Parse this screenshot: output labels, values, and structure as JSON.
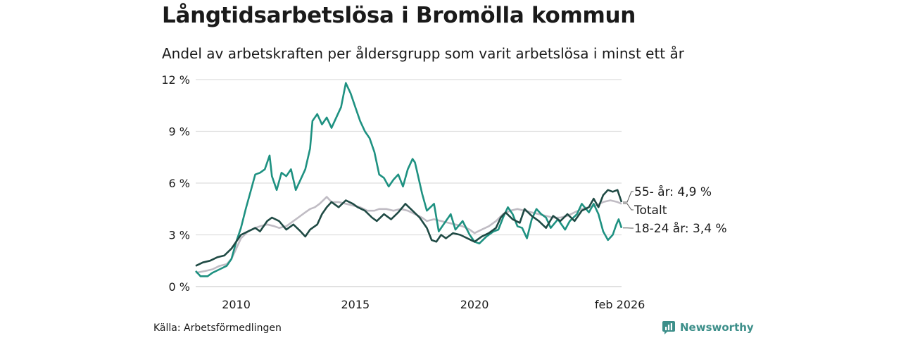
{
  "chart_data": {
    "type": "line",
    "title": "Långtidsarbetslösa i Bromölla kommun",
    "subtitle": "Andel av arbetskraften per åldersgrupp som varit arbetslösa i minst ett år",
    "ylim": [
      0,
      12
    ],
    "xlim": [
      2008.3,
      2026.17
    ],
    "yticks": [
      {
        "value": 0,
        "label": "0 %"
      },
      {
        "value": 3,
        "label": "3 %"
      },
      {
        "value": 6,
        "label": "6 %"
      },
      {
        "value": 9,
        "label": "9 %"
      },
      {
        "value": 12,
        "label": "12 %"
      }
    ],
    "xticks": [
      {
        "value": 2010,
        "label": "2010"
      },
      {
        "value": 2015,
        "label": "2015"
      },
      {
        "value": 2020,
        "label": "2020"
      },
      {
        "value": 2026.1,
        "label": "feb 2026"
      }
    ],
    "grid": true,
    "series": [
      {
        "name": "Totalt",
        "color": "#c0bcc4",
        "end_label": "Totalt",
        "points": [
          [
            2008.3,
            0.8
          ],
          [
            2008.7,
            0.9
          ],
          [
            2009.0,
            1.0
          ],
          [
            2009.3,
            1.2
          ],
          [
            2009.6,
            1.3
          ],
          [
            2009.8,
            1.6
          ],
          [
            2010.0,
            2.2
          ],
          [
            2010.2,
            2.8
          ],
          [
            2010.5,
            3.2
          ],
          [
            2010.8,
            3.4
          ],
          [
            2011.0,
            3.5
          ],
          [
            2011.3,
            3.6
          ],
          [
            2011.6,
            3.5
          ],
          [
            2011.8,
            3.4
          ],
          [
            2012.1,
            3.5
          ],
          [
            2012.4,
            3.8
          ],
          [
            2012.6,
            4.0
          ],
          [
            2012.9,
            4.3
          ],
          [
            2013.1,
            4.5
          ],
          [
            2013.3,
            4.6
          ],
          [
            2013.5,
            4.8
          ],
          [
            2013.8,
            5.2
          ],
          [
            2014.0,
            4.9
          ],
          [
            2014.3,
            4.9
          ],
          [
            2014.6,
            4.8
          ],
          [
            2014.9,
            4.7
          ],
          [
            2015.2,
            4.6
          ],
          [
            2015.5,
            4.4
          ],
          [
            2015.8,
            4.4
          ],
          [
            2016.0,
            4.5
          ],
          [
            2016.3,
            4.5
          ],
          [
            2016.6,
            4.4
          ],
          [
            2016.9,
            4.5
          ],
          [
            2017.2,
            4.4
          ],
          [
            2017.5,
            4.2
          ],
          [
            2017.8,
            4.0
          ],
          [
            2018.0,
            3.8
          ],
          [
            2018.3,
            3.9
          ],
          [
            2018.6,
            3.8
          ],
          [
            2018.9,
            3.7
          ],
          [
            2019.2,
            3.6
          ],
          [
            2019.5,
            3.5
          ],
          [
            2019.8,
            3.3
          ],
          [
            2020.0,
            3.1
          ],
          [
            2020.3,
            3.3
          ],
          [
            2020.6,
            3.5
          ],
          [
            2020.9,
            3.8
          ],
          [
            2021.2,
            4.2
          ],
          [
            2021.5,
            4.4
          ],
          [
            2021.8,
            4.5
          ],
          [
            2022.1,
            4.4
          ],
          [
            2022.4,
            4.3
          ],
          [
            2022.7,
            4.2
          ],
          [
            2023.0,
            4.1
          ],
          [
            2023.3,
            4.0
          ],
          [
            2023.6,
            4.0
          ],
          [
            2023.9,
            4.1
          ],
          [
            2024.2,
            4.3
          ],
          [
            2024.5,
            4.5
          ],
          [
            2024.8,
            4.6
          ],
          [
            2025.1,
            4.7
          ],
          [
            2025.4,
            4.9
          ],
          [
            2025.7,
            5.0
          ],
          [
            2026.0,
            4.9
          ],
          [
            2026.17,
            4.8
          ]
        ]
      },
      {
        "name": "18-24 år",
        "color": "#1e9181",
        "end_label": "18-24 år: 3,4 %",
        "points": [
          [
            2008.3,
            0.9
          ],
          [
            2008.5,
            0.6
          ],
          [
            2008.8,
            0.6
          ],
          [
            2009.0,
            0.8
          ],
          [
            2009.3,
            1.0
          ],
          [
            2009.6,
            1.2
          ],
          [
            2009.8,
            1.6
          ],
          [
            2010.0,
            2.6
          ],
          [
            2010.2,
            3.4
          ],
          [
            2010.4,
            4.5
          ],
          [
            2010.6,
            5.5
          ],
          [
            2010.8,
            6.5
          ],
          [
            2011.0,
            6.6
          ],
          [
            2011.2,
            6.8
          ],
          [
            2011.4,
            7.6
          ],
          [
            2011.5,
            6.4
          ],
          [
            2011.7,
            5.6
          ],
          [
            2011.9,
            6.6
          ],
          [
            2012.1,
            6.4
          ],
          [
            2012.3,
            6.8
          ],
          [
            2012.5,
            5.6
          ],
          [
            2012.7,
            6.2
          ],
          [
            2012.9,
            6.8
          ],
          [
            2013.1,
            8.0
          ],
          [
            2013.2,
            9.6
          ],
          [
            2013.4,
            10.0
          ],
          [
            2013.6,
            9.4
          ],
          [
            2013.8,
            9.8
          ],
          [
            2014.0,
            9.2
          ],
          [
            2014.2,
            9.8
          ],
          [
            2014.4,
            10.4
          ],
          [
            2014.6,
            11.8
          ],
          [
            2014.8,
            11.2
          ],
          [
            2015.0,
            10.4
          ],
          [
            2015.2,
            9.6
          ],
          [
            2015.4,
            9.0
          ],
          [
            2015.6,
            8.6
          ],
          [
            2015.8,
            7.8
          ],
          [
            2016.0,
            6.5
          ],
          [
            2016.2,
            6.3
          ],
          [
            2016.4,
            5.8
          ],
          [
            2016.6,
            6.2
          ],
          [
            2016.8,
            6.5
          ],
          [
            2017.0,
            5.8
          ],
          [
            2017.2,
            6.8
          ],
          [
            2017.4,
            7.4
          ],
          [
            2017.5,
            7.2
          ],
          [
            2017.6,
            6.6
          ],
          [
            2017.8,
            5.4
          ],
          [
            2018.0,
            4.4
          ],
          [
            2018.3,
            4.8
          ],
          [
            2018.5,
            3.2
          ],
          [
            2018.7,
            3.6
          ],
          [
            2019.0,
            4.2
          ],
          [
            2019.2,
            3.3
          ],
          [
            2019.5,
            3.8
          ],
          [
            2019.8,
            3.0
          ],
          [
            2020.0,
            2.6
          ],
          [
            2020.2,
            2.5
          ],
          [
            2020.5,
            2.9
          ],
          [
            2020.8,
            3.2
          ],
          [
            2021.0,
            3.3
          ],
          [
            2021.2,
            4.0
          ],
          [
            2021.4,
            4.6
          ],
          [
            2021.6,
            4.2
          ],
          [
            2021.8,
            3.5
          ],
          [
            2022.0,
            3.4
          ],
          [
            2022.2,
            2.8
          ],
          [
            2022.4,
            3.9
          ],
          [
            2022.6,
            4.5
          ],
          [
            2022.8,
            4.2
          ],
          [
            2023.0,
            4.0
          ],
          [
            2023.2,
            3.4
          ],
          [
            2023.5,
            3.9
          ],
          [
            2023.8,
            3.3
          ],
          [
            2024.0,
            3.8
          ],
          [
            2024.3,
            4.2
          ],
          [
            2024.5,
            4.8
          ],
          [
            2024.8,
            4.3
          ],
          [
            2025.0,
            4.8
          ],
          [
            2025.2,
            4.2
          ],
          [
            2025.4,
            3.2
          ],
          [
            2025.6,
            2.7
          ],
          [
            2025.8,
            3.0
          ],
          [
            2025.95,
            3.6
          ],
          [
            2026.05,
            3.9
          ],
          [
            2026.17,
            3.4
          ]
        ]
      },
      {
        "name": "55- år",
        "color": "#1f4a44",
        "end_label": "55- år: 4,9 %",
        "points": [
          [
            2008.3,
            1.2
          ],
          [
            2008.6,
            1.4
          ],
          [
            2008.9,
            1.5
          ],
          [
            2009.2,
            1.7
          ],
          [
            2009.5,
            1.8
          ],
          [
            2009.8,
            2.2
          ],
          [
            2010.0,
            2.6
          ],
          [
            2010.2,
            3.0
          ],
          [
            2010.5,
            3.2
          ],
          [
            2010.8,
            3.4
          ],
          [
            2011.0,
            3.2
          ],
          [
            2011.3,
            3.8
          ],
          [
            2011.5,
            4.0
          ],
          [
            2011.8,
            3.8
          ],
          [
            2012.1,
            3.3
          ],
          [
            2012.4,
            3.6
          ],
          [
            2012.7,
            3.2
          ],
          [
            2012.9,
            2.9
          ],
          [
            2013.1,
            3.3
          ],
          [
            2013.4,
            3.6
          ],
          [
            2013.6,
            4.2
          ],
          [
            2013.8,
            4.6
          ],
          [
            2014.0,
            4.9
          ],
          [
            2014.3,
            4.6
          ],
          [
            2014.6,
            5.0
          ],
          [
            2014.9,
            4.8
          ],
          [
            2015.1,
            4.6
          ],
          [
            2015.4,
            4.4
          ],
          [
            2015.7,
            4.0
          ],
          [
            2015.9,
            3.8
          ],
          [
            2016.2,
            4.2
          ],
          [
            2016.5,
            3.9
          ],
          [
            2016.8,
            4.3
          ],
          [
            2017.1,
            4.8
          ],
          [
            2017.4,
            4.4
          ],
          [
            2017.7,
            4.0
          ],
          [
            2018.0,
            3.4
          ],
          [
            2018.2,
            2.7
          ],
          [
            2018.4,
            2.6
          ],
          [
            2018.6,
            3.0
          ],
          [
            2018.8,
            2.8
          ],
          [
            2019.1,
            3.1
          ],
          [
            2019.4,
            3.0
          ],
          [
            2019.7,
            2.8
          ],
          [
            2020.0,
            2.6
          ],
          [
            2020.3,
            2.9
          ],
          [
            2020.6,
            3.1
          ],
          [
            2020.9,
            3.4
          ],
          [
            2021.1,
            4.0
          ],
          [
            2021.3,
            4.3
          ],
          [
            2021.6,
            3.9
          ],
          [
            2021.9,
            3.7
          ],
          [
            2022.1,
            4.5
          ],
          [
            2022.4,
            4.1
          ],
          [
            2022.7,
            3.8
          ],
          [
            2023.0,
            3.4
          ],
          [
            2023.3,
            4.1
          ],
          [
            2023.6,
            3.8
          ],
          [
            2023.9,
            4.2
          ],
          [
            2024.2,
            3.8
          ],
          [
            2024.5,
            4.4
          ],
          [
            2024.8,
            4.6
          ],
          [
            2025.0,
            5.1
          ],
          [
            2025.2,
            4.6
          ],
          [
            2025.4,
            5.3
          ],
          [
            2025.6,
            5.6
          ],
          [
            2025.8,
            5.5
          ],
          [
            2026.0,
            5.6
          ],
          [
            2026.17,
            4.9
          ]
        ]
      }
    ]
  },
  "source": "Källa: Arbetsförmedlingen",
  "brand": "Newsworthy"
}
